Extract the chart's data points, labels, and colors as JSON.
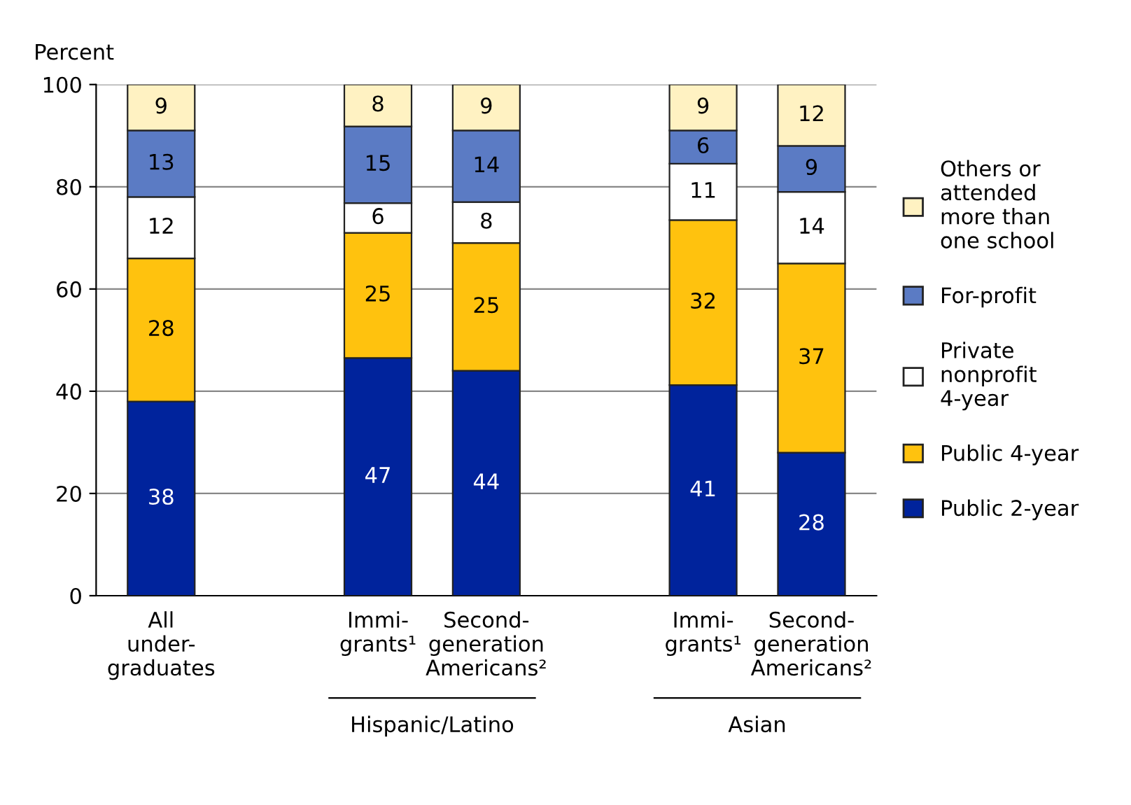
{
  "chart_data": {
    "type": "bar",
    "stacked": true,
    "ylabel": "Percent",
    "categories": [
      "All\nunder-\ngraduates",
      null,
      "Immi-\ngrants¹",
      "Second-\ngeneration\nAmericans²",
      null,
      "Immi-\ngrants¹",
      "Second-\ngeneration\nAmericans²"
    ],
    "series": [
      {
        "name": "Public 2-year",
        "color": "#00239c",
        "values": [
          38,
          null,
          46.5,
          44,
          null,
          41.2,
          28
        ],
        "value_labels": [
          "38",
          null,
          "47",
          "44",
          null,
          "41",
          "28"
        ]
      },
      {
        "name": "Public 4-year",
        "color": "#ffc20e",
        "values": [
          28,
          null,
          24.5,
          25,
          null,
          32.3,
          37
        ],
        "value_labels": [
          "28",
          null,
          "25",
          "25",
          null,
          "32",
          "37"
        ]
      },
      {
        "name": "Private\nnonprofit\n4-year",
        "color": "#ffffff",
        "values": [
          12,
          null,
          5.8,
          8,
          null,
          11,
          14
        ],
        "value_labels": [
          "12",
          null,
          "6",
          "8",
          null,
          "11",
          "14"
        ]
      },
      {
        "name": "For-profit",
        "color": "#5b7bc4",
        "values": [
          13,
          null,
          15,
          14,
          null,
          6.5,
          9
        ],
        "value_labels": [
          "13",
          null,
          "15",
          "14",
          null,
          "6",
          "9"
        ]
      },
      {
        "name": "Others or\nattended\nmore than\none school",
        "color": "#fff2c2",
        "values": [
          9,
          null,
          8.2,
          9,
          null,
          9,
          12
        ],
        "value_labels": [
          "9",
          null,
          "8",
          "9",
          null,
          "9",
          "12"
        ]
      }
    ],
    "annotations": [
      "Hispanic/Latino",
      "Asian"
    ],
    "ylim": [
      0,
      100
    ],
    "yticks": [
      0,
      20,
      40,
      60,
      80,
      100
    ],
    "grid": "y",
    "legend": "right"
  }
}
